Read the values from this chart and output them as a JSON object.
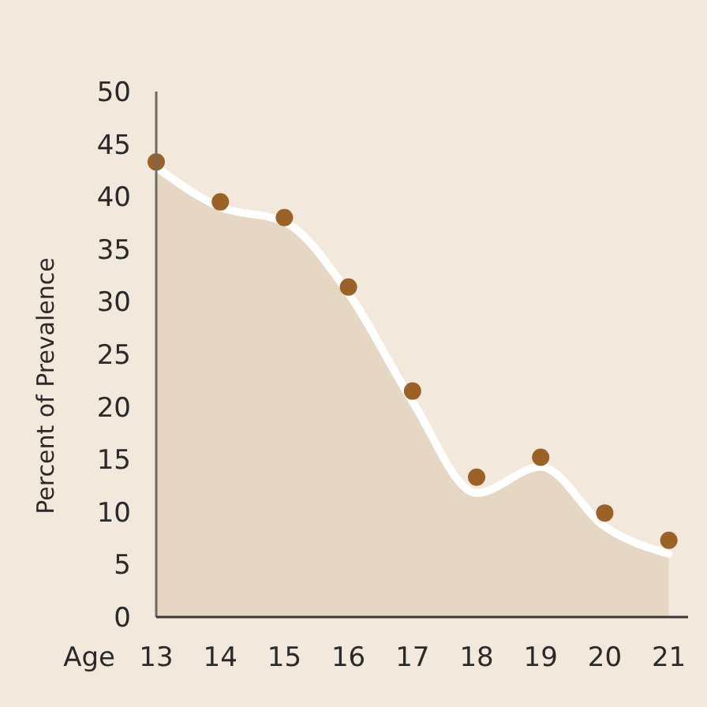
{
  "chart_data": {
    "type": "area",
    "xlabel": "Age",
    "ylabel": "Percent of Prevalence",
    "x": [
      13,
      14,
      15,
      16,
      17,
      18,
      19,
      20,
      21
    ],
    "xlim": [
      13,
      21.3
    ],
    "xticks": [
      13,
      14,
      15,
      16,
      17,
      18,
      19,
      20,
      21
    ],
    "ylim": [
      0,
      50
    ],
    "yticks": [
      0,
      5,
      10,
      15,
      20,
      25,
      30,
      35,
      40,
      45,
      50
    ],
    "grid": false,
    "series": [
      {
        "color": "#e6d6c4",
        "values": [
          42.8,
          39.0,
          37.6,
          30.8,
          20.5,
          11.8,
          14.3,
          8.6,
          6.0
        ]
      },
      {
        "type": "scatter",
        "color": "#9a6226",
        "marker": "circle",
        "values": [
          43.3,
          39.5,
          38.0,
          31.4,
          21.5,
          13.3,
          15.2,
          9.9,
          7.3
        ]
      }
    ]
  }
}
